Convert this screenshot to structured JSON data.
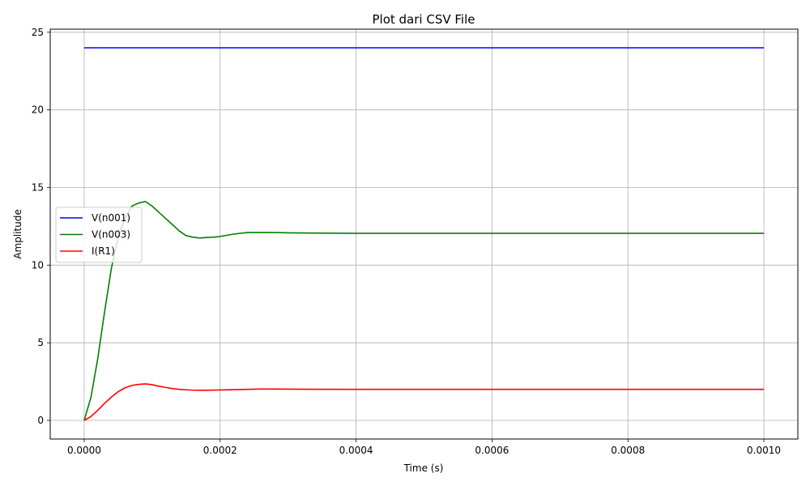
{
  "chart_data": {
    "type": "line",
    "title": "Plot dari CSV File",
    "xlabel": "Time (s)",
    "ylabel": "Amplitude",
    "xlim": [
      -5e-05,
      0.00105
    ],
    "ylim": [
      -1.2,
      25.2
    ],
    "xticks": [
      0.0,
      0.0002,
      0.0004,
      0.0006,
      0.0008,
      0.001
    ],
    "xtick_labels": [
      "0.0000",
      "0.0002",
      "0.0004",
      "0.0006",
      "0.0008",
      "0.0010"
    ],
    "yticks": [
      0,
      5,
      10,
      15,
      20,
      25
    ],
    "ytick_labels": [
      "0",
      "5",
      "10",
      "15",
      "20",
      "25"
    ],
    "grid": true,
    "legend": "center-left",
    "series": [
      {
        "name": "V(n001)",
        "color": "#0000ff",
        "x": [
          0.0,
          0.0005,
          0.001
        ],
        "y": [
          24.0,
          24.0,
          24.0
        ]
      },
      {
        "name": "V(n003)",
        "color": "#008000",
        "x": [
          0.0,
          1e-05,
          2e-05,
          3e-05,
          4e-05,
          5e-05,
          6e-05,
          7e-05,
          8e-05,
          9e-05,
          0.0001,
          0.00011,
          0.00012,
          0.00013,
          0.00014,
          0.00015,
          0.00016,
          0.00017,
          0.00018,
          0.00019,
          0.0002,
          0.00022,
          0.00024,
          0.00026,
          0.00028,
          0.0003,
          0.00035,
          0.0004,
          0.0005,
          0.0006,
          0.0007,
          0.0008,
          0.0009,
          0.001
        ],
        "y": [
          0.0,
          1.5,
          4.0,
          7.0,
          9.8,
          11.8,
          13.0,
          13.8,
          14.0,
          14.1,
          13.8,
          13.4,
          13.0,
          12.6,
          12.2,
          11.9,
          11.8,
          11.75,
          11.78,
          11.8,
          11.85,
          12.0,
          12.1,
          12.1,
          12.1,
          12.08,
          12.06,
          12.05,
          12.05,
          12.05,
          12.05,
          12.05,
          12.05,
          12.05
        ]
      },
      {
        "name": "I(R1)",
        "color": "#ff0000",
        "x": [
          0.0,
          1e-05,
          2e-05,
          3e-05,
          4e-05,
          5e-05,
          6e-05,
          7e-05,
          8e-05,
          9e-05,
          0.0001,
          0.00011,
          0.00012,
          0.00013,
          0.00014,
          0.00015,
          0.00016,
          0.00017,
          0.00018,
          0.00019,
          0.0002,
          0.00022,
          0.00024,
          0.00026,
          0.00028,
          0.0003,
          0.0004,
          0.0005,
          0.0006,
          0.0007,
          0.0008,
          0.0009,
          0.001
        ],
        "y": [
          0.0,
          0.25,
          0.65,
          1.1,
          1.5,
          1.85,
          2.1,
          2.25,
          2.32,
          2.35,
          2.3,
          2.2,
          2.12,
          2.05,
          2.0,
          1.97,
          1.95,
          1.94,
          1.94,
          1.95,
          1.96,
          1.98,
          2.0,
          2.02,
          2.02,
          2.01,
          2.0,
          2.0,
          2.0,
          2.0,
          2.0,
          2.0,
          2.0
        ]
      }
    ]
  }
}
